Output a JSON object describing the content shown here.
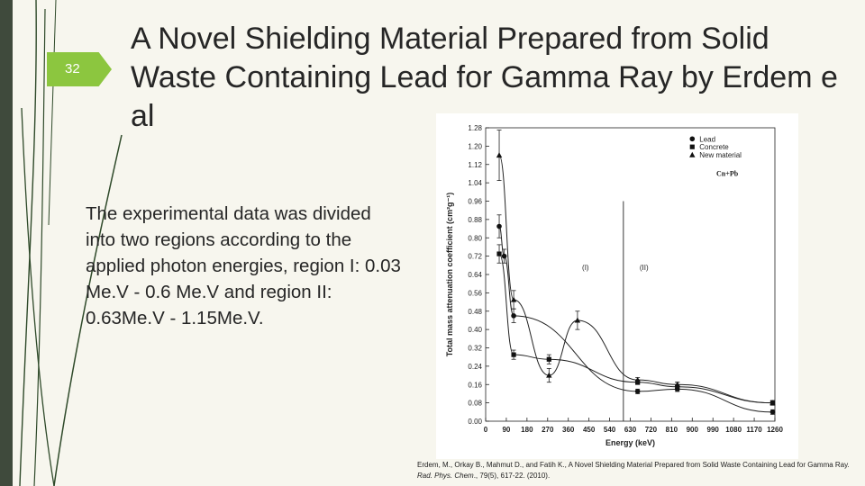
{
  "slide": {
    "number": "32",
    "title": "A Novel Shielding Material Prepared from Solid\nWaste Containing Lead for Gamma Ray by Erdem e\nal",
    "body": "The experimental data was divided into two regions according to the applied photon energies, region I: 0.03 Me.V - 0.6 Me.V and region II: 0.63Me.V - 1.15Me.V.",
    "citation": {
      "before": "Erdem, M., Orkay B., Mahmut D., and Fatih K., A Novel Shielding Material Prepared from Solid Waste Containing Lead for Gamma Ray. ",
      "journal": "Rad. Phys. Chem",
      "after": "., 79(5), 617-22. (2010)."
    },
    "accent_color": "#8cc63f",
    "line_color": "#2f4a2a"
  },
  "chart_data": {
    "type": "line",
    "xlabel": "Energy (keV)",
    "ylabel": "Total mass attenuation coefficient (cm²g⁻¹)",
    "xlim": [
      0,
      1260
    ],
    "ylim": [
      0,
      1.28
    ],
    "xticks": [
      "0",
      "90",
      "180",
      "270",
      "360",
      "450",
      "540",
      "630",
      "720",
      "810",
      "900",
      "990",
      "1080",
      "1170",
      "1260"
    ],
    "yticks": [
      "0.00",
      "0.08",
      "0.16",
      "0.24",
      "0.32",
      "0.40",
      "0.48",
      "0.56",
      "0.64",
      "0.72",
      "0.80",
      "0.88",
      "0.96",
      "1.04",
      "1.12",
      "1.20",
      "1.28"
    ],
    "region_labels": [
      "(I)",
      "(II)"
    ],
    "region_divider_x": 600,
    "annotation": "Cn+Pb",
    "series": [
      {
        "name": "Lead",
        "marker": "circle",
        "x": [
          59,
          81,
          122,
          662,
          835,
          1250
        ],
        "y": [
          0.85,
          0.72,
          0.46,
          0.13,
          0.14,
          0.04
        ],
        "err": [
          0.05,
          0.03,
          0.03,
          0.01,
          0.01,
          0.01
        ]
      },
      {
        "name": "Concrete",
        "marker": "square",
        "x": [
          59,
          122,
          276,
          662,
          835,
          1250
        ],
        "y": [
          0.73,
          0.29,
          0.27,
          0.17,
          0.15,
          0.08
        ],
        "err": [
          0.04,
          0.02,
          0.02,
          0.01,
          0.02,
          0.01
        ]
      },
      {
        "name": "New material",
        "marker": "triangle",
        "x": [
          59,
          122,
          276,
          400,
          662,
          835,
          1250
        ],
        "y": [
          1.16,
          0.53,
          0.2,
          0.44,
          0.18,
          0.16,
          0.08
        ],
        "err": [
          0.11,
          0.04,
          0.03,
          0.04,
          0.01,
          0.01,
          0.01
        ]
      }
    ]
  }
}
